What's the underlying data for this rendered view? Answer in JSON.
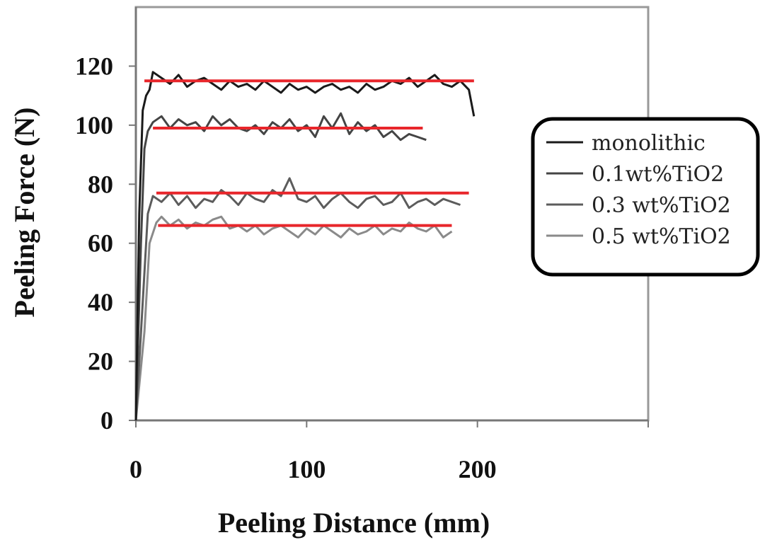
{
  "chart_data": {
    "type": "line",
    "title": "",
    "xlabel": "Peeling Distance (mm)",
    "ylabel": "Peeling Force (N)",
    "xlim": [
      0,
      300
    ],
    "ylim": [
      0,
      140
    ],
    "x_ticks": [
      0,
      100,
      200
    ],
    "y_ticks": [
      0,
      20,
      40,
      60,
      80,
      100,
      120
    ],
    "grid": false,
    "legend_position": "right",
    "series": [
      {
        "name": "monolithic",
        "color": "#1a1a1a",
        "x": [
          0,
          2,
          4,
          6,
          8,
          10,
          15,
          20,
          25,
          30,
          35,
          40,
          45,
          50,
          55,
          60,
          65,
          70,
          75,
          80,
          85,
          90,
          95,
          100,
          105,
          110,
          115,
          120,
          125,
          130,
          135,
          140,
          145,
          150,
          155,
          160,
          165,
          170,
          175,
          180,
          185,
          190,
          195,
          198
        ],
        "y": [
          0,
          70,
          105,
          110,
          112,
          118,
          116,
          114,
          117,
          113,
          115,
          116,
          114,
          112,
          115,
          113,
          114,
          112,
          115,
          113,
          111,
          114,
          112,
          113,
          111,
          113,
          114,
          112,
          113,
          111,
          114,
          112,
          113,
          115,
          114,
          116,
          113,
          115,
          117,
          114,
          113,
          115,
          112,
          103
        ]
      },
      {
        "name": "0.1wt%TiO2",
        "color": "#444444",
        "x": [
          0,
          3,
          5,
          7,
          10,
          15,
          20,
          25,
          30,
          35,
          40,
          45,
          50,
          55,
          60,
          65,
          70,
          75,
          80,
          85,
          90,
          95,
          100,
          105,
          110,
          115,
          120,
          125,
          130,
          135,
          140,
          145,
          150,
          155,
          160,
          165,
          170
        ],
        "y": [
          0,
          60,
          92,
          98,
          101,
          103,
          99,
          102,
          100,
          101,
          98,
          103,
          100,
          102,
          99,
          98,
          100,
          97,
          101,
          99,
          102,
          98,
          100,
          96,
          103,
          99,
          104,
          97,
          101,
          98,
          100,
          96,
          98,
          95,
          97,
          96,
          95
        ]
      },
      {
        "name": "0.3 wt%TiO2",
        "color": "#5c5c5c",
        "x": [
          0,
          4,
          7,
          10,
          15,
          20,
          25,
          30,
          35,
          40,
          45,
          50,
          55,
          60,
          65,
          70,
          75,
          80,
          85,
          90,
          95,
          100,
          105,
          110,
          115,
          120,
          125,
          130,
          135,
          140,
          145,
          150,
          155,
          160,
          165,
          170,
          175,
          180,
          185,
          190
        ],
        "y": [
          0,
          40,
          70,
          76,
          74,
          77,
          73,
          76,
          72,
          75,
          74,
          78,
          76,
          73,
          77,
          75,
          74,
          78,
          76,
          82,
          75,
          74,
          76,
          72,
          75,
          77,
          74,
          72,
          75,
          76,
          73,
          74,
          77,
          72,
          74,
          75,
          73,
          75,
          74,
          73
        ]
      },
      {
        "name": "0.5 wt%TiO2",
        "color": "#8a8a8a",
        "x": [
          0,
          5,
          8,
          12,
          15,
          20,
          25,
          30,
          35,
          40,
          45,
          50,
          55,
          60,
          65,
          70,
          75,
          80,
          85,
          90,
          95,
          100,
          105,
          110,
          115,
          120,
          125,
          130,
          135,
          140,
          145,
          150,
          155,
          160,
          165,
          170,
          175,
          180,
          185
        ],
        "y": [
          0,
          30,
          60,
          67,
          69,
          66,
          68,
          65,
          67,
          66,
          68,
          69,
          65,
          66,
          64,
          66,
          63,
          65,
          66,
          64,
          62,
          65,
          63,
          66,
          64,
          62,
          65,
          63,
          64,
          66,
          63,
          65,
          64,
          67,
          65,
          64,
          66,
          62,
          64
        ]
      }
    ],
    "reference_lines": [
      {
        "y": 115,
        "x": [
          5,
          198
        ],
        "color": "#e8262b"
      },
      {
        "y": 99,
        "x": [
          10,
          168
        ],
        "color": "#e8262b"
      },
      {
        "y": 77,
        "x": [
          12,
          195
        ],
        "color": "#e8262b"
      },
      {
        "y": 66,
        "x": [
          13,
          185
        ],
        "color": "#e8262b"
      }
    ]
  }
}
